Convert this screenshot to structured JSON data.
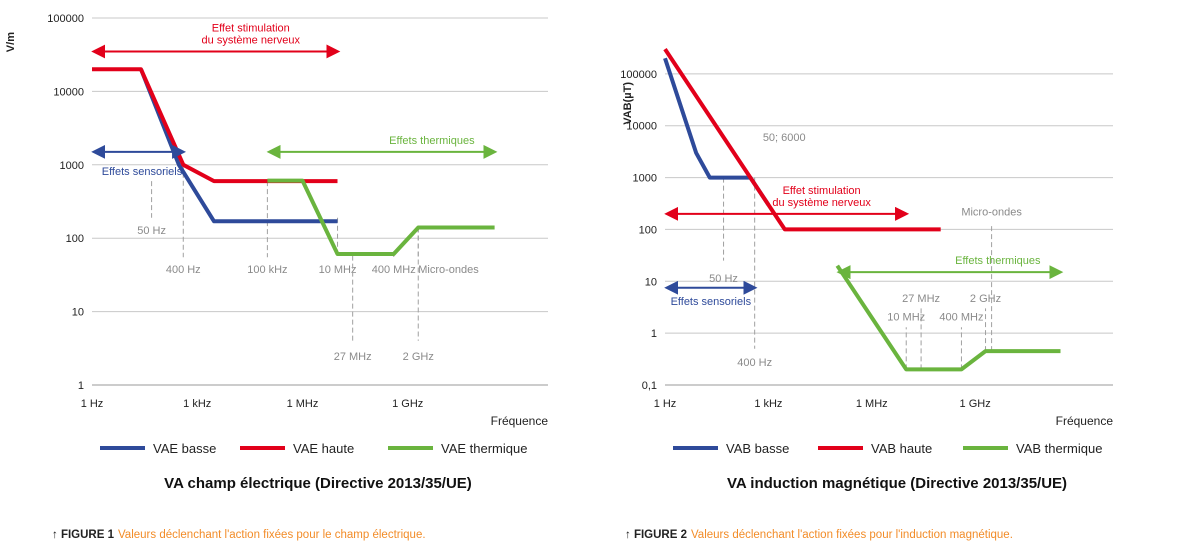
{
  "chart_data": [
    {
      "type": "line",
      "title": "VA champ électrique (Directive 2013/35/UE)",
      "ylabel": "V/m",
      "xlabel": "Fréquence",
      "x_scale": "log",
      "y_scale": "log",
      "xlim": [
        1,
        10000000000000
      ],
      "ylim": [
        1,
        100000
      ],
      "x_ticks": [
        {
          "value": 1,
          "label": "1 Hz"
        },
        {
          "value": 1000,
          "label": "1 kHz"
        },
        {
          "value": 1000000,
          "label": "1 MHz"
        },
        {
          "value": 1000000000,
          "label": "1 GHz"
        }
      ],
      "y_ticks": [
        {
          "value": 1,
          "label": "1"
        },
        {
          "value": 10,
          "label": "10"
        },
        {
          "value": 100,
          "label": "100"
        },
        {
          "value": 1000,
          "label": "1000"
        },
        {
          "value": 10000,
          "label": "10000"
        },
        {
          "value": 100000,
          "label": "100000"
        }
      ],
      "grid": true,
      "legend_position": "bottom",
      "series": [
        {
          "name": "VAE basse",
          "color": "#2e4a9a",
          "points": [
            [
              25,
              20000
            ],
            [
              300,
              1000
            ],
            [
              3000,
              170
            ],
            [
              10000000,
              170
            ]
          ]
        },
        {
          "name": "VAE haute",
          "color": "#e2001a",
          "points": [
            [
              1,
              20000
            ],
            [
              25,
              20000
            ],
            [
              400,
              1000
            ],
            [
              3000,
              600
            ],
            [
              10000000,
              600
            ]
          ]
        },
        {
          "name": "VAE thermique",
          "color": "#6ab43e",
          "points": [
            [
              100000,
              610
            ],
            [
              1000000,
              610
            ],
            [
              10000000,
              61
            ],
            [
              400000000,
              61
            ],
            [
              2000000000,
              140
            ],
            [
              300000000000,
              140
            ]
          ]
        }
      ],
      "ranges": [
        {
          "label_lines": [
            "Effet stimulation",
            "du système nerveux"
          ],
          "color": "#e2001a",
          "from": 1,
          "to": 10000000,
          "y": 35000
        },
        {
          "label_lines": [
            "Effets sensoriels"
          ],
          "color": "#2e4a9a",
          "from": 1,
          "to": 400,
          "y": 1500
        },
        {
          "label_lines": [
            "Effets thermiques"
          ],
          "color": "#6ab43e",
          "from": 100000,
          "to": 300000000000,
          "y": 1500
        }
      ],
      "markers": [
        {
          "label": "50 Hz",
          "x": 50,
          "y_from": 600,
          "y_to": 190,
          "label_y": 130
        },
        {
          "label": "400 Hz",
          "x": 400,
          "y_from": 1000,
          "y_to": 55,
          "label_y": 38
        },
        {
          "label": "100 kHz",
          "x": 100000,
          "y_from": 600,
          "y_to": 55,
          "label_y": 38
        },
        {
          "label": "10 MHz",
          "x": 10000000,
          "y_from": 190,
          "y_to": 55,
          "label_y": 38
        },
        {
          "label": "400 MHz",
          "x": 400000000,
          "y_from": 65,
          "y_to": 55,
          "label_y": 38
        },
        {
          "label": "Micro-ondes",
          "x": 2000000000,
          "y_from": 140,
          "y_to": 55,
          "label_y": 38,
          "label_anchor": "start"
        },
        {
          "label": "27 MHz",
          "x": 27000000,
          "y_from": 58,
          "y_to": 4,
          "label_y": 2.5
        },
        {
          "label": "2 GHz",
          "x": 2000000000,
          "y_from": 140,
          "y_to": 4,
          "label_y": 2.5
        }
      ],
      "caption": {
        "number": "↑ FIGURE 1",
        "text": "Valeurs déclenchant l'action fixées pour le champ électrique."
      }
    },
    {
      "type": "line",
      "title": "VA induction magnétique (Directive 2013/35/UE)",
      "ylabel": "VAB(µT)",
      "xlabel": "Fréquence",
      "x_scale": "log",
      "y_scale": "log",
      "xlim": [
        1,
        10000000000000
      ],
      "ylim": [
        0.1,
        1000000
      ],
      "x_ticks": [
        {
          "value": 1,
          "label": "1 Hz"
        },
        {
          "value": 1000,
          "label": "1 kHz"
        },
        {
          "value": 1000000,
          "label": "1 MHz"
        },
        {
          "value": 1000000000,
          "label": "1 GHz"
        }
      ],
      "y_ticks": [
        {
          "value": 0.1,
          "label": "0,1"
        },
        {
          "value": 1,
          "label": "1"
        },
        {
          "value": 10,
          "label": "10"
        },
        {
          "value": 100,
          "label": "100"
        },
        {
          "value": 1000,
          "label": "1000"
        },
        {
          "value": 10000,
          "label": "10000"
        },
        {
          "value": 100000,
          "label": "100000"
        }
      ],
      "grid": true,
      "legend_position": "bottom",
      "series": [
        {
          "name": "VAB basse",
          "color": "#2e4a9a",
          "points": [
            [
              1,
              200000
            ],
            [
              8,
              3000
            ],
            [
              20,
              1000
            ],
            [
              300,
              1000
            ],
            [
              1000,
              300
            ]
          ]
        },
        {
          "name": "VAB haute",
          "color": "#e2001a",
          "points": [
            [
              1,
              300000
            ],
            [
              3000,
              100
            ],
            [
              100000000,
              100
            ]
          ]
        },
        {
          "name": "VAB thermique",
          "color": "#6ab43e",
          "points": [
            [
              100000,
              20
            ],
            [
              10000000,
              0.2
            ],
            [
              400000000,
              0.2
            ],
            [
              2000000000,
              0.45
            ],
            [
              300000000000,
              0.45
            ]
          ]
        }
      ],
      "ranges": [
        {
          "label_lines": [
            "Effet stimulation",
            "du système nerveux"
          ],
          "color": "#e2001a",
          "from": 1,
          "to": 10000000,
          "y": 200
        },
        {
          "label_lines": [
            "Effets sensoriels"
          ],
          "color": "#2e4a9a",
          "from": 1,
          "to": 400,
          "y": 7.5
        },
        {
          "label_lines": [
            "Effets thermiques"
          ],
          "color": "#6ab43e",
          "from": 100000,
          "to": 300000000000,
          "y": 15
        }
      ],
      "markers": [
        {
          "label": "50 Hz",
          "x": 50,
          "y_from": 1000,
          "y_to": 25,
          "label_y": 11.5
        },
        {
          "label": "400 Hz",
          "x": 400,
          "y_from": 1000,
          "y_to": 0.5,
          "label_y": 0.28
        },
        {
          "label": "27 MHz",
          "x": 27000000,
          "y_from": 0.2,
          "y_to": 3,
          "label_y": 4.8
        },
        {
          "label": "10 MHz",
          "x": 10000000,
          "y_from": 0.2,
          "y_to": 1.3,
          "label_y": 2.1
        },
        {
          "label": "400 MHz",
          "x": 400000000,
          "y_from": 0.2,
          "y_to": 1.3,
          "label_y": 2.1
        },
        {
          "label": "2 GHz",
          "x": 2000000000,
          "y_from": 0.45,
          "y_to": 3,
          "label_y": 4.8
        },
        {
          "label": "Micro-ondes",
          "x": 3000000000,
          "y_from": 0.45,
          "y_to": 120,
          "label_y": 220
        }
      ],
      "annotations": [
        {
          "label": "50; 6000",
          "x": 3000,
          "y": 6000
        }
      ],
      "caption": {
        "number": "↑ FIGURE 2",
        "text": "Valeurs déclenchant l'action fixées pour l'induction magnétique."
      }
    }
  ]
}
